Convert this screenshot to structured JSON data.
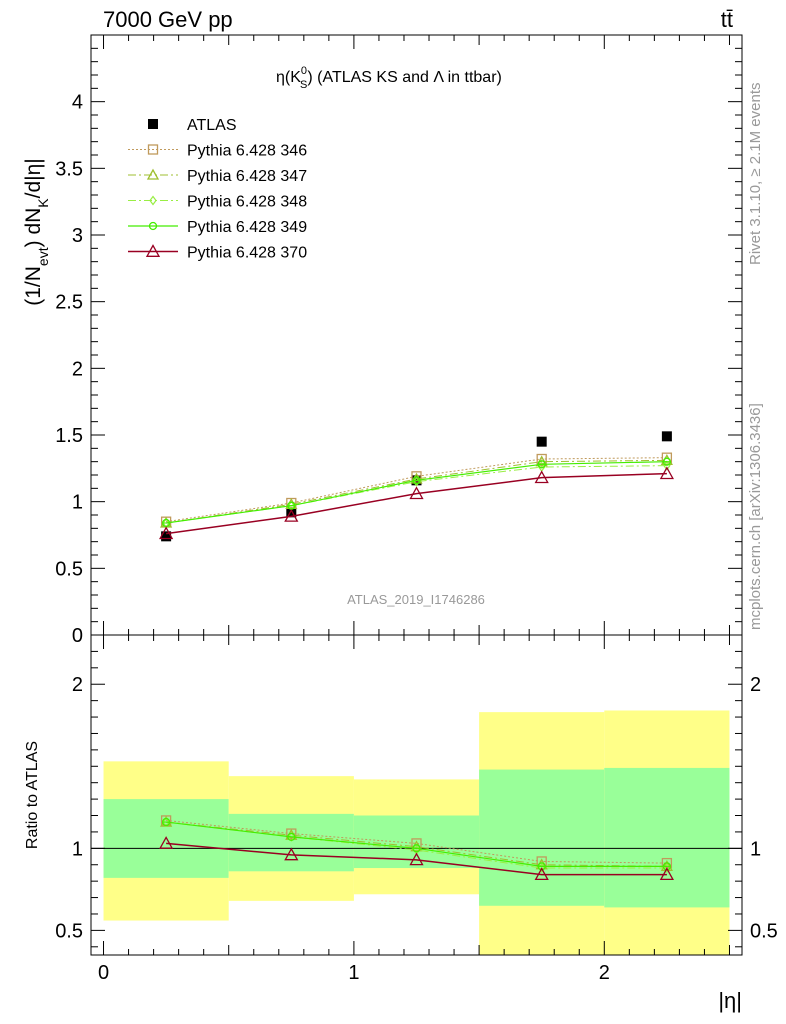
{
  "header": {
    "left": "7000 GeV pp",
    "right": "tt̄"
  },
  "plot_title": {
    "prefix": "η(K",
    "sup": "0",
    "sub": "S",
    "suffix": ") (ATLAS KS and Λ in ttbar)"
  },
  "side_labels": {
    "rivet": "Rivet 3.1.10, ≥ 2.1M events",
    "mcplots": "mcplots.cern.ch [arXiv:1306.3436]"
  },
  "watermark": "ATLAS_2019_I1746286",
  "top_ylabel": {
    "a": "(1/N",
    "b": "evt",
    "c": ") dN",
    "d": "K",
    "e": "/d|η|"
  },
  "bottom_ylabel": "Ratio to ATLAS",
  "xlabel": "|η|",
  "colors": {
    "data": "#000000",
    "p346": "#c09a5c",
    "p347": "#9fbf30",
    "p348": "#99ee44",
    "p349": "#44ee00",
    "p370": "#990022",
    "band_outer": "#ffff88",
    "band_inner": "#99ff99"
  },
  "chart_data": [
    {
      "type": "line",
      "x_edges": [
        0,
        0.5,
        1,
        1.5,
        2,
        2.5
      ],
      "x": [
        0.25,
        0.75,
        1.25,
        1.75,
        2.25
      ],
      "xlim": [
        -0.05,
        2.55
      ],
      "ylim": [
        0,
        4.5
      ],
      "yticks": [
        "0",
        "0.5",
        "1",
        "1.5",
        "2",
        "2.5",
        "3",
        "3.5",
        "4"
      ],
      "legend_position": "top-left",
      "series": [
        {
          "name": "ATLAS",
          "key": "data",
          "values": [
            0.74,
            0.92,
            1.16,
            1.45,
            1.49
          ]
        },
        {
          "name": "Pythia 6.428 346",
          "key": "p346",
          "values": [
            0.85,
            0.99,
            1.19,
            1.32,
            1.33
          ]
        },
        {
          "name": "Pythia 6.428 347",
          "key": "p347",
          "values": [
            0.84,
            0.98,
            1.17,
            1.3,
            1.31
          ]
        },
        {
          "name": "Pythia 6.428 348",
          "key": "p348",
          "values": [
            0.84,
            0.97,
            1.15,
            1.26,
            1.27
          ]
        },
        {
          "name": "Pythia 6.428 349",
          "key": "p349",
          "values": [
            0.84,
            0.97,
            1.16,
            1.28,
            1.3
          ]
        },
        {
          "name": "Pythia 6.428 370",
          "key": "p370",
          "values": [
            0.76,
            0.89,
            1.06,
            1.18,
            1.21
          ]
        }
      ]
    },
    {
      "type": "line",
      "ylabel": "Ratio to ATLAS",
      "xlabel": "|η|",
      "xlim": [
        -0.05,
        2.55
      ],
      "ylim": [
        0.35,
        2.3
      ],
      "xticks": [
        "0",
        "1",
        "2"
      ],
      "yticks": [
        "0.5",
        "1",
        "2"
      ],
      "bands": {
        "outer": [
          [
            0.56,
            1.53
          ],
          [
            0.68,
            1.44
          ],
          [
            0.72,
            1.42
          ],
          [
            0.35,
            1.83
          ],
          [
            0.35,
            1.84
          ]
        ],
        "inner": [
          [
            0.82,
            1.3
          ],
          [
            0.86,
            1.21
          ],
          [
            0.88,
            1.2
          ],
          [
            0.65,
            1.48
          ],
          [
            0.64,
            1.49
          ]
        ]
      },
      "series": [
        {
          "name": "Pythia 6.428 346",
          "key": "p346",
          "values": [
            1.17,
            1.09,
            1.03,
            0.92,
            0.91
          ]
        },
        {
          "name": "Pythia 6.428 347",
          "key": "p347",
          "values": [
            1.16,
            1.08,
            1.01,
            0.9,
            0.89
          ]
        },
        {
          "name": "Pythia 6.428 348",
          "key": "p348",
          "values": [
            1.16,
            1.07,
            0.99,
            0.88,
            0.88
          ]
        },
        {
          "name": "Pythia 6.428 349",
          "key": "p349",
          "values": [
            1.16,
            1.07,
            1.0,
            0.89,
            0.89
          ]
        },
        {
          "name": "Pythia 6.428 370",
          "key": "p370",
          "values": [
            1.03,
            0.96,
            0.93,
            0.84,
            0.84
          ]
        }
      ]
    }
  ]
}
